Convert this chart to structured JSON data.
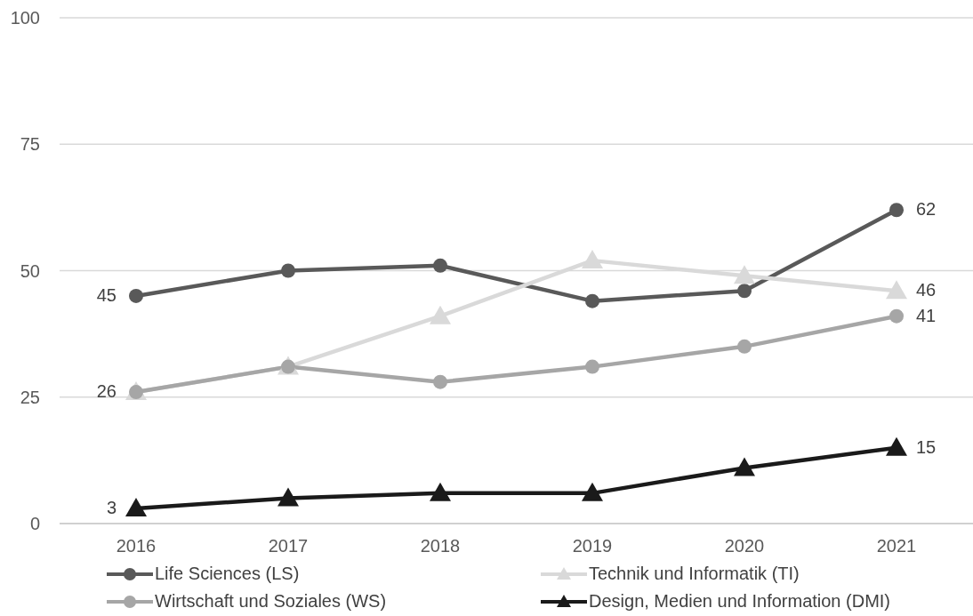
{
  "chart_data": {
    "type": "line",
    "categories": [
      "2016",
      "2017",
      "2018",
      "2019",
      "2020",
      "2021"
    ],
    "series": [
      {
        "name": "Life Sciences (LS)",
        "color": "#595959",
        "marker": "circle",
        "values": [
          45,
          50,
          51,
          44,
          46,
          62
        ],
        "value_labels": [
          "45",
          null,
          null,
          null,
          null,
          "62"
        ]
      },
      {
        "name": "Technik und Informatik (TI)",
        "color": "#d9d9d9",
        "marker": "triangle",
        "values": [
          26,
          31,
          41,
          52,
          49,
          46
        ],
        "value_labels": [
          null,
          null,
          null,
          null,
          null,
          "46"
        ]
      },
      {
        "name": "Wirtschaft und Soziales (WS)",
        "color": "#a6a6a6",
        "marker": "circle",
        "values": [
          26,
          31,
          28,
          31,
          35,
          41
        ],
        "value_labels": [
          "26",
          null,
          null,
          null,
          null,
          "41"
        ]
      },
      {
        "name": "Design, Medien und Information (DMI)",
        "color": "#1a1a1a",
        "marker": "triangle",
        "values": [
          3,
          5,
          6,
          6,
          11,
          15
        ],
        "value_labels": [
          "3",
          null,
          null,
          null,
          null,
          "15"
        ]
      }
    ],
    "ylim": [
      0,
      100
    ],
    "yticks": [
      0,
      25,
      50,
      75,
      100
    ],
    "grid": "y",
    "legend": "bottom",
    "line_style": "solid"
  }
}
